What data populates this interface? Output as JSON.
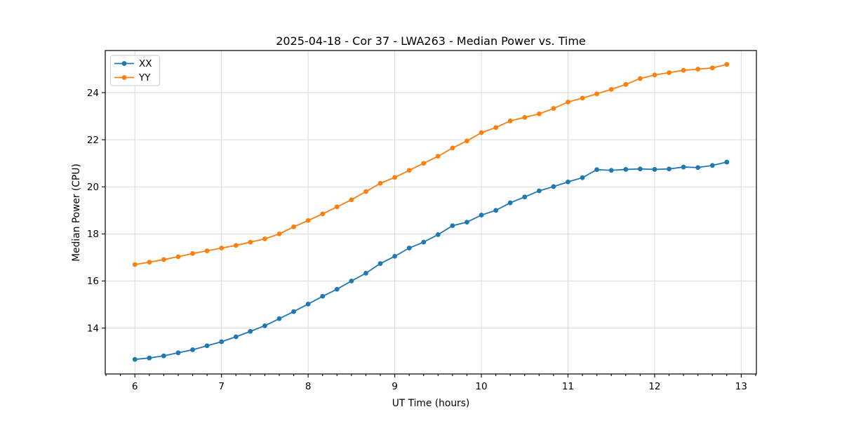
{
  "chart_data": {
    "type": "line",
    "title": "2025-04-18 - Cor 37 - LWA263 - Median Power vs. Time",
    "xlabel": "UT Time (hours)",
    "ylabel": "Median Power (CPU)",
    "xlim": [
      5.658,
      13.175
    ],
    "ylim": [
      12.05,
      25.79
    ],
    "x_major_ticks": [
      6,
      7,
      8,
      9,
      10,
      11,
      12,
      13
    ],
    "x_minor_interval": 0.166667,
    "y_major_ticks": [
      14,
      16,
      18,
      20,
      22,
      24
    ],
    "grid": true,
    "grid_color": "#dadada",
    "spine_color": "#000000",
    "legend": {
      "position": "upper left",
      "entries": [
        "XX",
        "YY"
      ]
    },
    "x": [
      6.0,
      6.167,
      6.333,
      6.5,
      6.667,
      6.833,
      7.0,
      7.167,
      7.333,
      7.5,
      7.667,
      7.833,
      8.0,
      8.167,
      8.333,
      8.5,
      8.667,
      8.833,
      9.0,
      9.167,
      9.333,
      9.5,
      9.667,
      9.833,
      10.0,
      10.167,
      10.333,
      10.5,
      10.667,
      10.833,
      11.0,
      11.167,
      11.333,
      11.5,
      11.667,
      11.833,
      12.0,
      12.167,
      12.333,
      12.5,
      12.667,
      12.833
    ],
    "series": [
      {
        "name": "XX",
        "color": "#1f77b4",
        "marker": "circle",
        "values": [
          12.67,
          12.73,
          12.82,
          12.95,
          13.08,
          13.25,
          13.42,
          13.63,
          13.86,
          14.1,
          14.4,
          14.7,
          15.02,
          15.35,
          15.65,
          16.0,
          16.33,
          16.74,
          17.05,
          17.4,
          17.65,
          17.97,
          18.35,
          18.5,
          18.8,
          19.0,
          19.32,
          19.57,
          19.83,
          20.01,
          20.21,
          20.39,
          20.73,
          20.7,
          20.74,
          20.76,
          20.74,
          20.76,
          20.84,
          20.82,
          20.91,
          21.05
        ]
      },
      {
        "name": "YY",
        "color": "#ff7f0e",
        "marker": "circle",
        "values": [
          16.7,
          16.8,
          16.91,
          17.03,
          17.17,
          17.28,
          17.4,
          17.51,
          17.65,
          17.79,
          18.0,
          18.3,
          18.57,
          18.85,
          19.15,
          19.45,
          19.8,
          20.15,
          20.4,
          20.7,
          21.0,
          21.3,
          21.65,
          21.95,
          22.3,
          22.52,
          22.8,
          22.95,
          23.1,
          23.33,
          23.6,
          23.77,
          23.95,
          24.14,
          24.35,
          24.6,
          24.75,
          24.85,
          24.95,
          25.0,
          25.05,
          25.2
        ]
      }
    ]
  }
}
